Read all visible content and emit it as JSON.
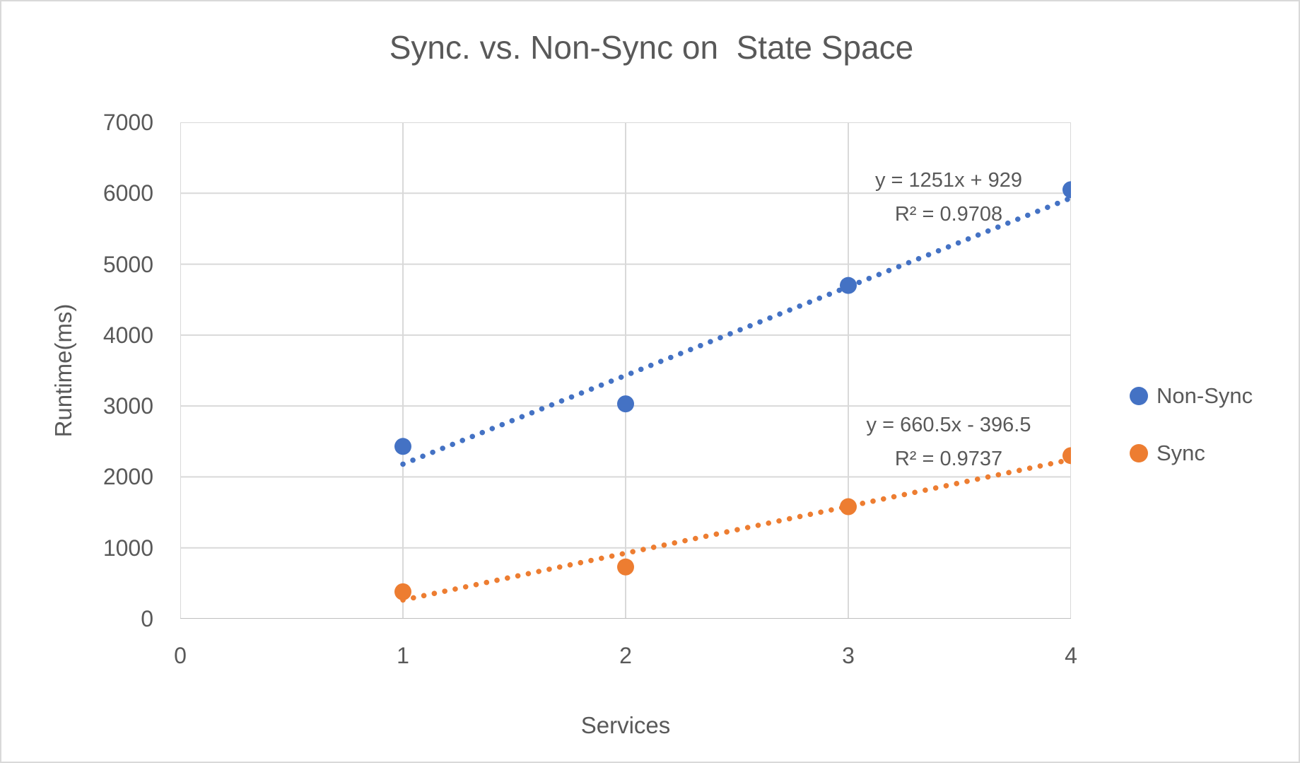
{
  "title": "Sync. vs. Non-Sync on  State Space",
  "axes": {
    "x_title": "Services",
    "y_title": "Runtime(ms)"
  },
  "legend": {
    "items": [
      {
        "label": "Non-Sync",
        "color": "#4472C4"
      },
      {
        "label": "Sync",
        "color": "#ED7D31"
      }
    ]
  },
  "colors": {
    "gridline": "#D9D9D9",
    "axis_line": "#BFBFBF",
    "text": "#595959",
    "background": "#FFFFFF",
    "series_blue": "#4472C4",
    "series_orange": "#ED7D31"
  },
  "chart_data": {
    "type": "scatter",
    "title": "Sync. vs. Non-Sync on  State Space",
    "xlabel": "Services",
    "ylabel": "Runtime(ms)",
    "xlim": [
      0,
      4
    ],
    "ylim": [
      0,
      7000
    ],
    "x_ticks": [
      "0",
      "1",
      "2",
      "3",
      "4"
    ],
    "y_ticks": [
      "0",
      "1000",
      "2000",
      "3000",
      "4000",
      "5000",
      "6000",
      "7000"
    ],
    "grid": true,
    "legend_position": "right",
    "series": [
      {
        "name": "Non-Sync",
        "color": "#4472C4",
        "x": [
          1,
          2,
          3,
          4
        ],
        "y": [
          2430,
          3030,
          4700,
          6050
        ],
        "trendline": {
          "style": "dotted",
          "slope": 1251,
          "intercept": 929,
          "x_start": 1,
          "x_end": 4,
          "equation_label": "y = 1251x + 929",
          "r2_label": "R² = 0.9708"
        }
      },
      {
        "name": "Sync",
        "color": "#ED7D31",
        "x": [
          1,
          2,
          3,
          4
        ],
        "y": [
          380,
          730,
          1580,
          2300
        ],
        "trendline": {
          "style": "dotted",
          "slope": 660.5,
          "intercept": -396.5,
          "x_start": 1,
          "x_end": 4,
          "equation_label": "y = 660.5x - 396.5",
          "r2_label": "R² = 0.9737"
        }
      }
    ]
  }
}
